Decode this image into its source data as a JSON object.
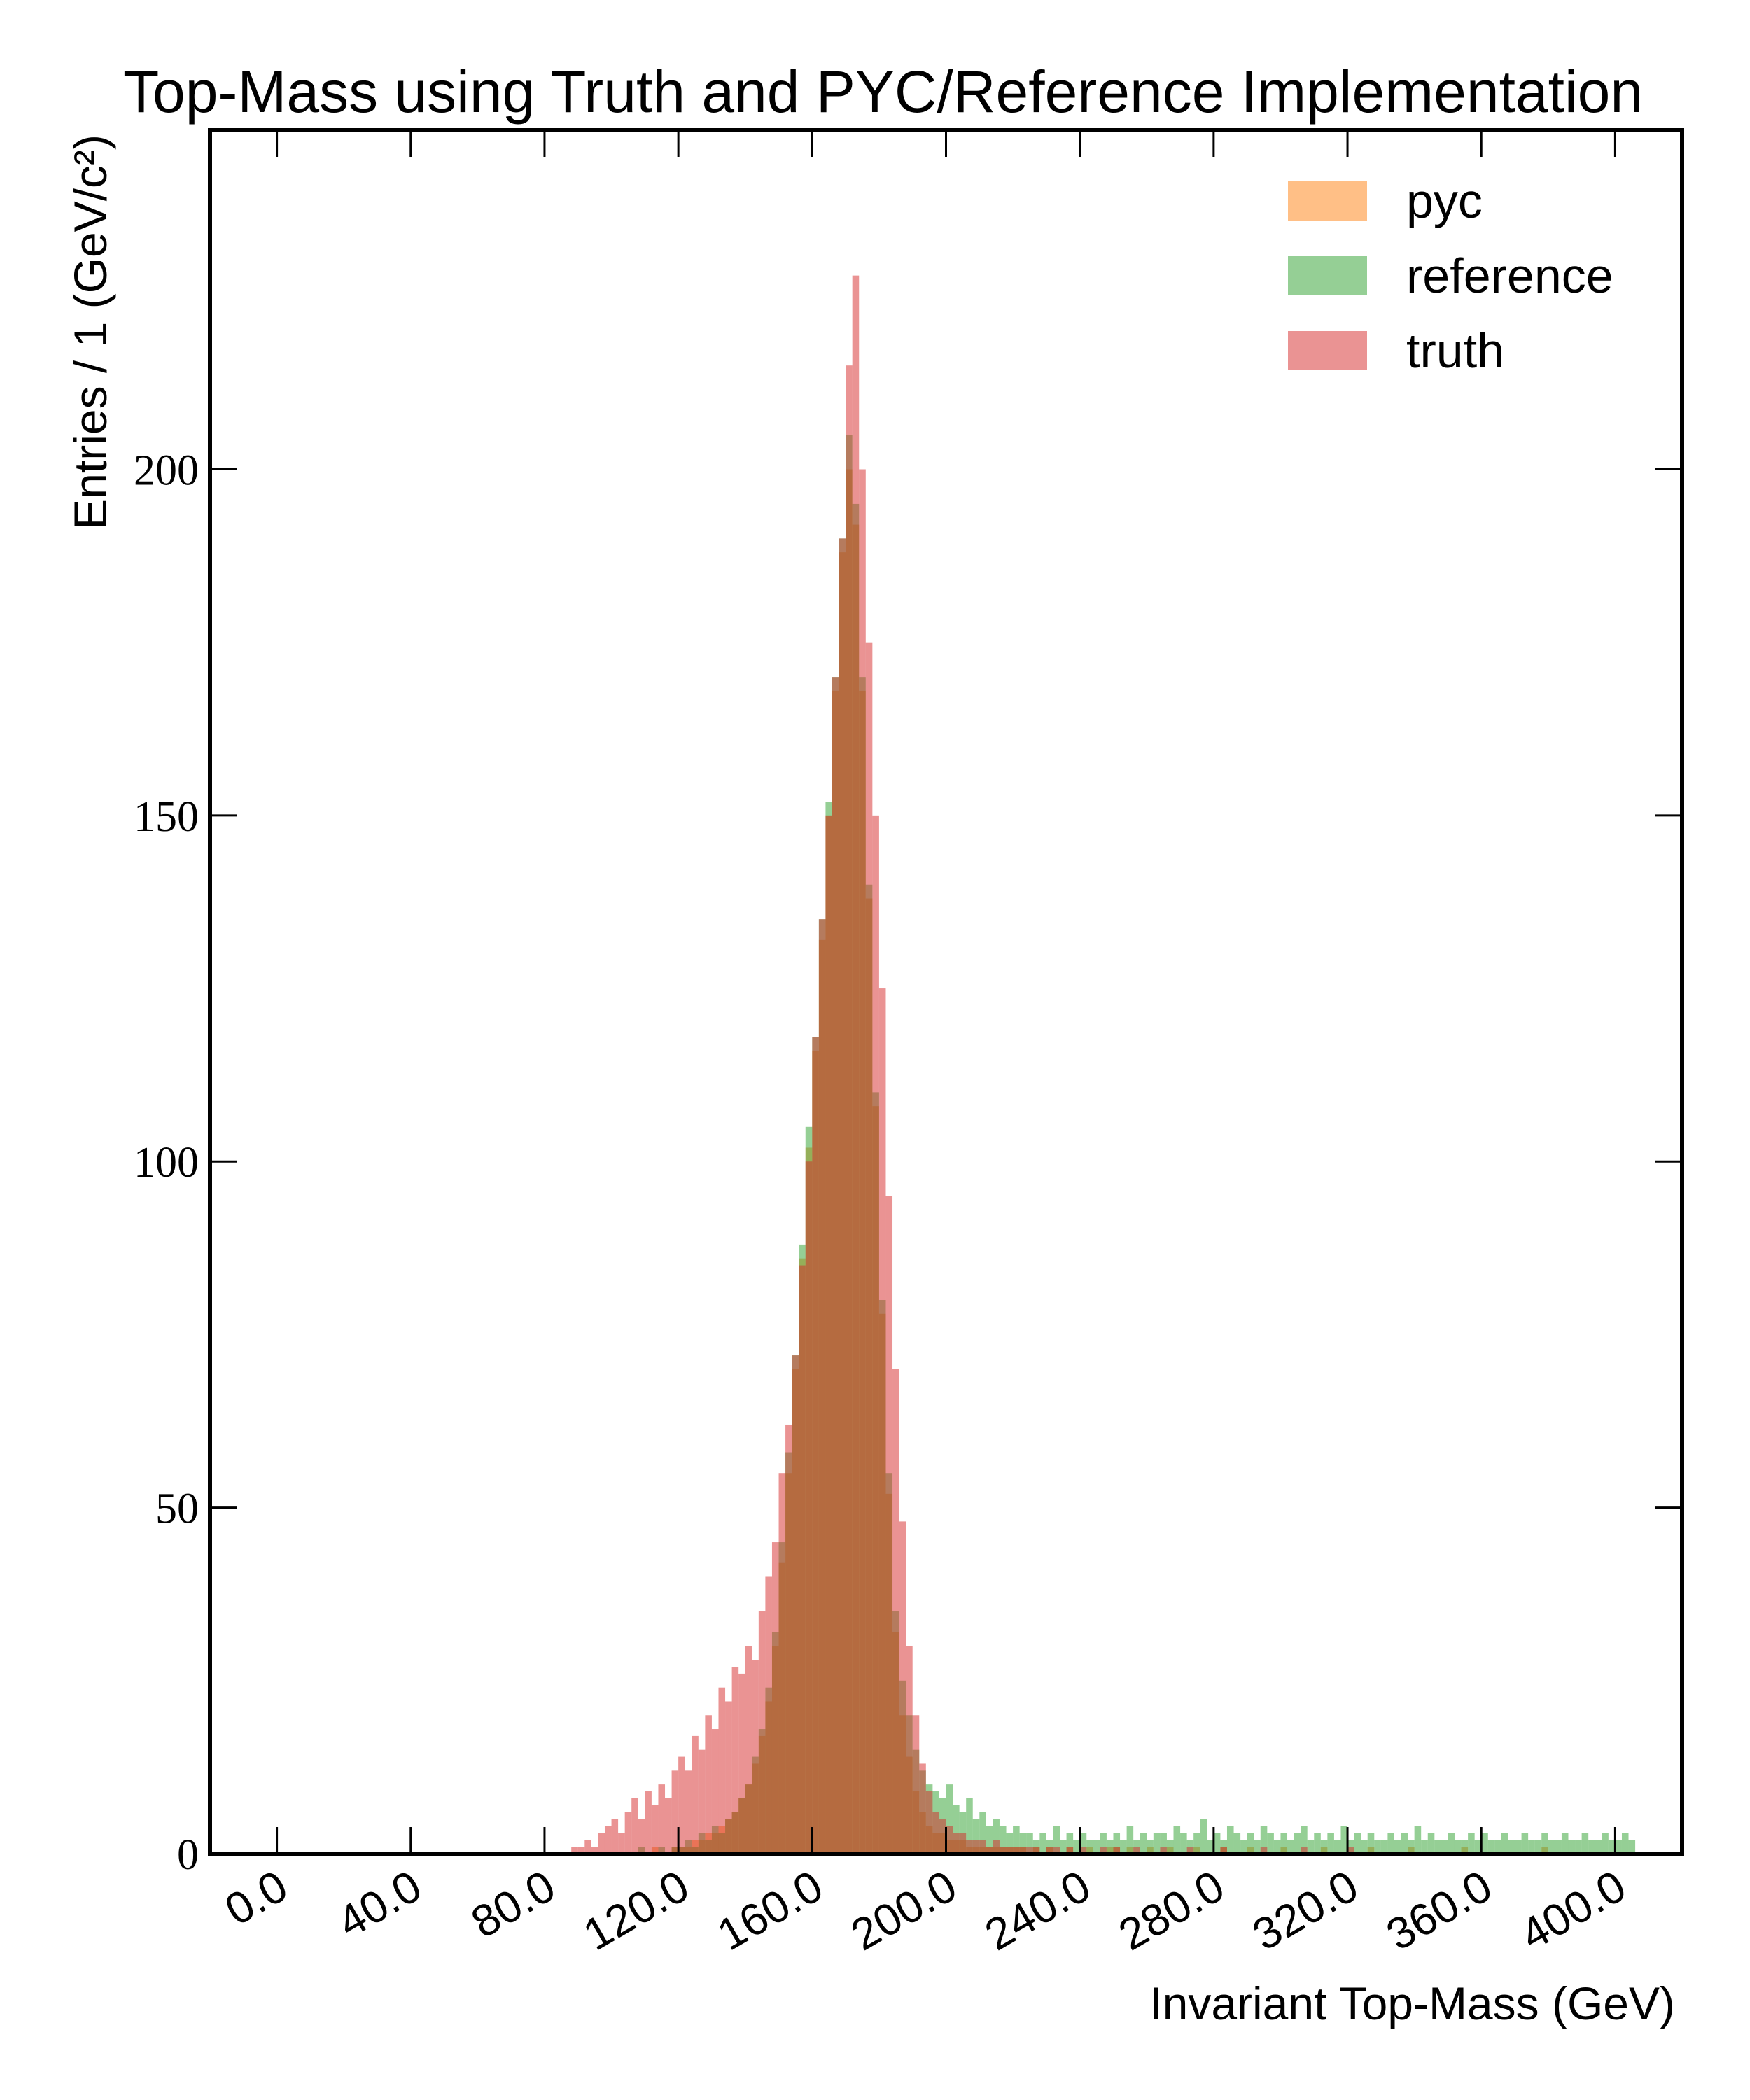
{
  "chart_data": {
    "type": "histogram",
    "title": "Top-Mass using Truth and PYC/Reference Implementation",
    "xlabel": "Invariant Top-Mass (GeV)",
    "ylabel": "Entries / 1 (GeV/c²)",
    "xlim": [
      -20,
      420
    ],
    "ylim": [
      0,
      249
    ],
    "xticks": [
      {
        "value": 0,
        "label": "0.0"
      },
      {
        "value": 40,
        "label": "40.0"
      },
      {
        "value": 80,
        "label": "80.0"
      },
      {
        "value": 120,
        "label": "120.0"
      },
      {
        "value": 160,
        "label": "160.0"
      },
      {
        "value": 200,
        "label": "200.0"
      },
      {
        "value": 240,
        "label": "240.0"
      },
      {
        "value": 280,
        "label": "280.0"
      },
      {
        "value": 320,
        "label": "320.0"
      },
      {
        "value": 360,
        "label": "360.0"
      },
      {
        "value": 400,
        "label": "400.0"
      }
    ],
    "yticks": [
      0,
      50,
      100,
      150,
      200
    ],
    "grid": false,
    "legend": "upper right",
    "alpha": 0.5,
    "bins": [
      86,
      88,
      90,
      92,
      94,
      96,
      98,
      100,
      102,
      104,
      106,
      108,
      110,
      112,
      114,
      116,
      118,
      120,
      122,
      124,
      126,
      128,
      130,
      132,
      134,
      136,
      138,
      140,
      142,
      144,
      146,
      148,
      150,
      152,
      154,
      156,
      158,
      160,
      162,
      164,
      166,
      168,
      170,
      172,
      174,
      176,
      178,
      180,
      182,
      184,
      186,
      188,
      190,
      192,
      194,
      196,
      198,
      200,
      202,
      204,
      206,
      208,
      210,
      212,
      214,
      216,
      218,
      220,
      222,
      224,
      226,
      228,
      230,
      232,
      234,
      236,
      238,
      240,
      242,
      244,
      246,
      248,
      250,
      252,
      254,
      256,
      258,
      260,
      262,
      264,
      266,
      268,
      270,
      272,
      274,
      276,
      278,
      280,
      282,
      284,
      286,
      288,
      290,
      292,
      294,
      296,
      298,
      300,
      302,
      304,
      306,
      308,
      310,
      312,
      314,
      316,
      318,
      320,
      322,
      324,
      326,
      328,
      330,
      332,
      334,
      336,
      338,
      340,
      342,
      344,
      346,
      348,
      350,
      352,
      354,
      356,
      358,
      360,
      362,
      364,
      366,
      368,
      370,
      372,
      374,
      376,
      378,
      380,
      382,
      384,
      386,
      388,
      390,
      392,
      394,
      396,
      398,
      400,
      402,
      404,
      406
    ],
    "series": [
      {
        "name": "pyc",
        "color": "#ff7f0e",
        "values": [
          0,
          0,
          0,
          0,
          0,
          0,
          0,
          0,
          0,
          0,
          0,
          0,
          0,
          1,
          0,
          0,
          1,
          1,
          1,
          2,
          2,
          3,
          3,
          4,
          5,
          6,
          8,
          10,
          13,
          17,
          22,
          30,
          42,
          55,
          70,
          86,
          102,
          116,
          132,
          150,
          168,
          188,
          200,
          192,
          168,
          138,
          108,
          78,
          52,
          32,
          20,
          14,
          9,
          6,
          4,
          3,
          3,
          2,
          2,
          2,
          1,
          1,
          1,
          1,
          1,
          1,
          1,
          1,
          1,
          0,
          1,
          0,
          1,
          0,
          0,
          1,
          0,
          0,
          1,
          0,
          0,
          1,
          1,
          0,
          1,
          0,
          0,
          1,
          0,
          0,
          1,
          0,
          0,
          0,
          1,
          0,
          0,
          0,
          1,
          0,
          0,
          0,
          1,
          0,
          0,
          0,
          0,
          1,
          0,
          0,
          0,
          0,
          0,
          1,
          0,
          0,
          0,
          0,
          0,
          0,
          1,
          0,
          0,
          0,
          0,
          0,
          1,
          0,
          0,
          0,
          0,
          0,
          0,
          0,
          1,
          0,
          0,
          0,
          0,
          0,
          0,
          0,
          0,
          0,
          0,
          0,
          1,
          0,
          0,
          0,
          0,
          0,
          0,
          0,
          0,
          0,
          0,
          0,
          0,
          0
        ]
      },
      {
        "name": "reference",
        "color": "#2ca02c",
        "values": [
          0,
          0,
          0,
          0,
          0,
          0,
          0,
          0,
          0,
          0,
          0,
          1,
          0,
          0,
          1,
          0,
          1,
          1,
          2,
          1,
          3,
          2,
          4,
          3,
          5,
          6,
          8,
          10,
          14,
          18,
          24,
          32,
          45,
          58,
          72,
          88,
          105,
          118,
          135,
          152,
          170,
          190,
          205,
          195,
          170,
          140,
          110,
          80,
          55,
          35,
          25,
          20,
          15,
          12,
          10,
          9,
          8,
          10,
          7,
          6,
          8,
          5,
          6,
          4,
          5,
          4,
          3,
          4,
          3,
          3,
          2,
          3,
          2,
          4,
          2,
          3,
          2,
          3,
          2,
          2,
          3,
          2,
          3,
          2,
          4,
          2,
          3,
          2,
          3,
          3,
          2,
          4,
          3,
          2,
          3,
          5,
          2,
          3,
          2,
          4,
          3,
          2,
          3,
          2,
          4,
          3,
          2,
          3,
          2,
          3,
          4,
          2,
          3,
          2,
          3,
          2,
          4,
          2,
          3,
          2,
          3,
          2,
          2,
          3,
          2,
          3,
          2,
          4,
          2,
          3,
          2,
          2,
          3,
          2,
          2,
          3,
          2,
          3,
          2,
          2,
          3,
          2,
          2,
          3,
          2,
          2,
          3,
          2,
          2,
          3,
          2,
          2,
          3,
          2,
          2,
          3,
          2,
          2,
          3,
          2
        ]
      },
      {
        "name": "truth",
        "color": "#d62728",
        "values": [
          0,
          1,
          1,
          2,
          1,
          3,
          4,
          5,
          3,
          6,
          8,
          5,
          9,
          7,
          10,
          8,
          12,
          14,
          12,
          17,
          15,
          20,
          18,
          24,
          22,
          27,
          26,
          30,
          28,
          35,
          40,
          45,
          55,
          62,
          72,
          85,
          100,
          118,
          135,
          150,
          170,
          190,
          215,
          228,
          200,
          175,
          150,
          125,
          95,
          70,
          48,
          30,
          20,
          13,
          9,
          6,
          5,
          4,
          3,
          3,
          2,
          2,
          2,
          1,
          2,
          1,
          1,
          1,
          1,
          1,
          1,
          0,
          1,
          1,
          0,
          1,
          0,
          1,
          0,
          0,
          1,
          0,
          1,
          0,
          0,
          1,
          0,
          0,
          0,
          1,
          0,
          0,
          0,
          1,
          0,
          0,
          0,
          0,
          1,
          0,
          0,
          0,
          0,
          0,
          1,
          0,
          0,
          0,
          0,
          0,
          1,
          0,
          0,
          0,
          0,
          0,
          0,
          1,
          0,
          0,
          0,
          0,
          0,
          0,
          0,
          0,
          0,
          0,
          0,
          0,
          0,
          0,
          0,
          0,
          0,
          0,
          0,
          0,
          0,
          0,
          0,
          0,
          0,
          0,
          0,
          0,
          0,
          0,
          0,
          0,
          0,
          0,
          0,
          0,
          0,
          0,
          0,
          0,
          0,
          0
        ]
      }
    ]
  }
}
